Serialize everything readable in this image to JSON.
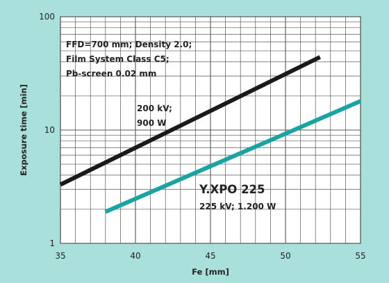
{
  "chart_data": {
    "type": "line",
    "title": "",
    "xlabel": "Fe [mm]",
    "ylabel": "Exposure time [min]",
    "xlim": [
      35,
      55
    ],
    "ylim": [
      1,
      100
    ],
    "yscale": "log",
    "grid": true,
    "x_ticks": [
      "35",
      "40",
      "45",
      "50",
      "55"
    ],
    "y_ticks": [
      "1",
      "10",
      "100"
    ],
    "series": [
      {
        "name": "200 kV; 900 W",
        "color": "#1a1a1a",
        "x": [
          35,
          52.3
        ],
        "y": [
          3.3,
          44
        ]
      },
      {
        "name": "Y.XPO 225, 225 kV; 1.200 W",
        "color": "#1aa3a3",
        "x": [
          38,
          55
        ],
        "y": [
          1.9,
          18
        ]
      }
    ],
    "annotations": {
      "conditions": [
        "FFD=700 mm; Density 2.0;",
        "Film System Class C5;",
        "Pb-screen 0.02 mm"
      ],
      "series1_label": [
        "200 kV;",
        "900 W"
      ],
      "series2_title": "Y.XPO 225",
      "series2_label": "225 kV; 1.200 W"
    }
  },
  "colors": {
    "background": "#a9e0dc",
    "plot_area": "#ffffff",
    "grid": "#555555"
  }
}
